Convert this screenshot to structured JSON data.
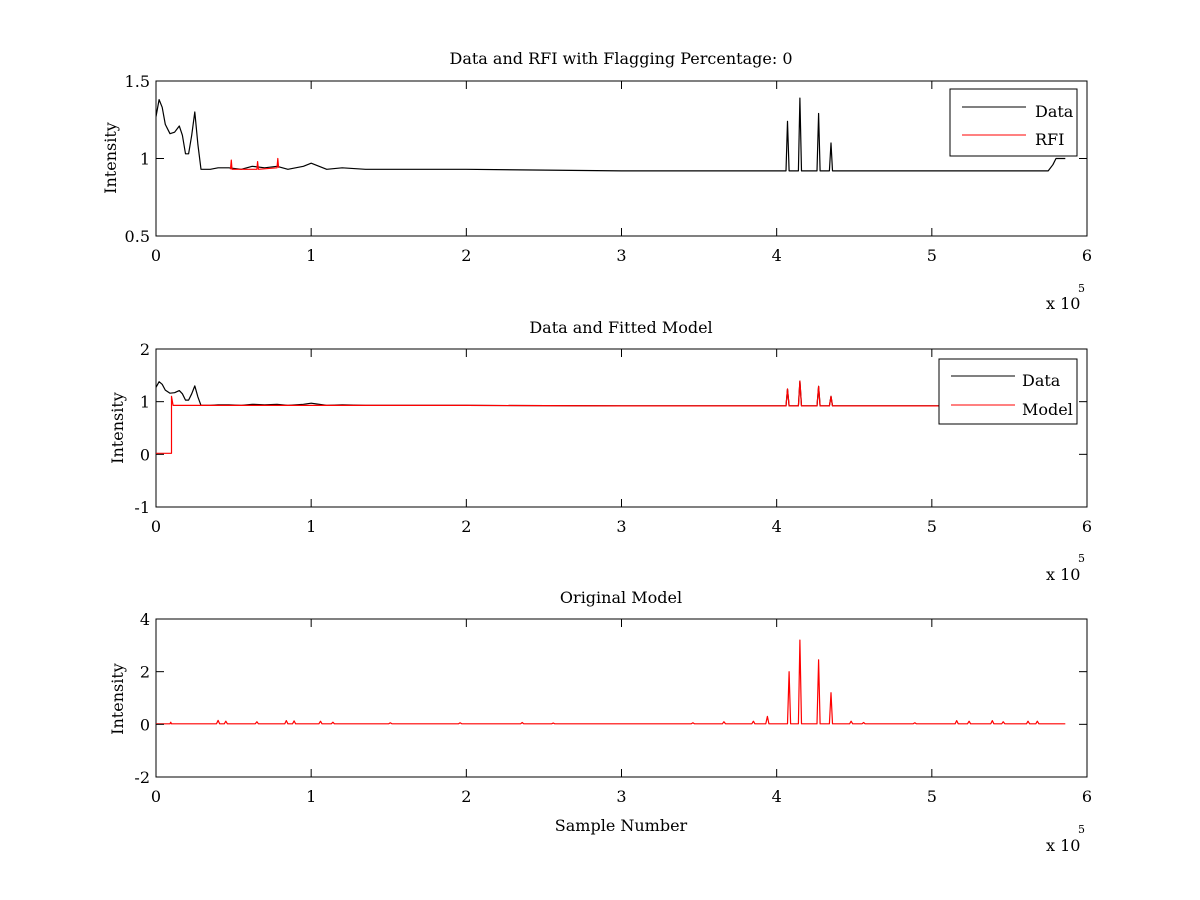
{
  "figure": {
    "background": "#ffffff"
  },
  "chart_data": [
    {
      "type": "line",
      "title": "Data and RFI with Flagging Percentage: 0",
      "xlabel": "",
      "ylabel": "Intensity",
      "xlim": [
        0,
        600000
      ],
      "ylim": [
        0.5,
        1.5
      ],
      "xticks": [
        0,
        100000,
        200000,
        300000,
        400000,
        500000,
        600000
      ],
      "xtick_labels": [
        "0",
        "1",
        "2",
        "3",
        "4",
        "5",
        "6"
      ],
      "yticks": [
        0.5,
        1,
        1.5
      ],
      "ytick_labels": [
        "0.5",
        "1",
        "1.5"
      ],
      "x_exponent_label": "x 10",
      "x_exponent_power": "5",
      "grid": false,
      "legend": {
        "placement": "top-right",
        "entries": [
          {
            "label": "Data",
            "color": "#000000"
          },
          {
            "label": "RFI",
            "color": "#ff0000"
          }
        ]
      },
      "series": [
        {
          "name": "Data",
          "color": "#000000",
          "points": [
            [
              0,
              1.27
            ],
            [
              2000,
              1.38
            ],
            [
              4000,
              1.33
            ],
            [
              6000,
              1.22
            ],
            [
              9000,
              1.16
            ],
            [
              12000,
              1.17
            ],
            [
              15000,
              1.21
            ],
            [
              17000,
              1.15
            ],
            [
              19000,
              1.03
            ],
            [
              21000,
              1.03
            ],
            [
              23000,
              1.15
            ],
            [
              25000,
              1.3
            ],
            [
              27000,
              1.09
            ],
            [
              29000,
              0.93
            ],
            [
              35000,
              0.93
            ],
            [
              40000,
              0.94
            ],
            [
              47000,
              0.94
            ],
            [
              55000,
              0.93
            ],
            [
              62000,
              0.95
            ],
            [
              70000,
              0.94
            ],
            [
              78000,
              0.95
            ],
            [
              85000,
              0.93
            ],
            [
              95000,
              0.95
            ],
            [
              100000,
              0.97
            ],
            [
              110000,
              0.93
            ],
            [
              120000,
              0.94
            ],
            [
              135000,
              0.93
            ],
            [
              150000,
              0.93
            ],
            [
              200000,
              0.93
            ],
            [
              300000,
              0.92
            ],
            [
              400000,
              0.92
            ],
            [
              406000,
              0.92
            ],
            [
              407000,
              1.24
            ],
            [
              408000,
              0.92
            ],
            [
              414000,
              0.92
            ],
            [
              415000,
              1.39
            ],
            [
              416000,
              0.92
            ],
            [
              426000,
              0.92
            ],
            [
              427000,
              1.29
            ],
            [
              428000,
              0.92
            ],
            [
              434000,
              0.92
            ],
            [
              435000,
              1.1
            ],
            [
              436000,
              0.92
            ],
            [
              500000,
              0.92
            ],
            [
              560000,
              0.92
            ],
            [
              575000,
              0.92
            ],
            [
              578000,
              0.96
            ],
            [
              580000,
              1.0
            ],
            [
              586000,
              1.0
            ]
          ]
        },
        {
          "name": "RFI",
          "color": "#ff0000",
          "points": [
            [
              48000,
              0.93
            ],
            [
              48500,
              0.99
            ],
            [
              49000,
              0.93
            ],
            [
              65000,
              0.93
            ],
            [
              65500,
              0.98
            ],
            [
              66000,
              0.93
            ],
            [
              78000,
              0.94
            ],
            [
              78500,
              1.0
            ],
            [
              79000,
              0.94
            ]
          ]
        }
      ]
    },
    {
      "type": "line",
      "title": "Data and Fitted Model",
      "xlabel": "",
      "ylabel": "Intensity",
      "xlim": [
        0,
        600000
      ],
      "ylim": [
        -1,
        2
      ],
      "xticks": [
        0,
        100000,
        200000,
        300000,
        400000,
        500000,
        600000
      ],
      "xtick_labels": [
        "0",
        "1",
        "2",
        "3",
        "4",
        "5",
        "6"
      ],
      "yticks": [
        -1,
        0,
        1,
        2
      ],
      "ytick_labels": [
        "-1",
        "0",
        "1",
        "2"
      ],
      "x_exponent_label": "x 10",
      "x_exponent_power": "5",
      "grid": false,
      "legend": {
        "placement": "top-right",
        "entries": [
          {
            "label": "Data",
            "color": "#000000"
          },
          {
            "label": "Model",
            "color": "#ff0000"
          }
        ]
      },
      "series": [
        {
          "name": "Data",
          "color": "#000000",
          "points": [
            [
              0,
              1.27
            ],
            [
              2000,
              1.38
            ],
            [
              4000,
              1.33
            ],
            [
              6000,
              1.22
            ],
            [
              9000,
              1.16
            ],
            [
              12000,
              1.17
            ],
            [
              15000,
              1.21
            ],
            [
              17000,
              1.15
            ],
            [
              19000,
              1.03
            ],
            [
              21000,
              1.03
            ],
            [
              23000,
              1.15
            ],
            [
              25000,
              1.3
            ],
            [
              27000,
              1.09
            ],
            [
              29000,
              0.93
            ],
            [
              35000,
              0.93
            ],
            [
              40000,
              0.94
            ],
            [
              47000,
              0.94
            ],
            [
              55000,
              0.93
            ],
            [
              62000,
              0.95
            ],
            [
              70000,
              0.94
            ],
            [
              78000,
              0.95
            ],
            [
              85000,
              0.93
            ],
            [
              95000,
              0.95
            ],
            [
              100000,
              0.97
            ],
            [
              110000,
              0.93
            ],
            [
              120000,
              0.94
            ],
            [
              135000,
              0.93
            ],
            [
              150000,
              0.93
            ],
            [
              200000,
              0.93
            ],
            [
              300000,
              0.92
            ],
            [
              400000,
              0.92
            ],
            [
              406000,
              0.92
            ],
            [
              407000,
              1.24
            ],
            [
              408000,
              0.92
            ],
            [
              414000,
              0.92
            ],
            [
              415000,
              1.39
            ],
            [
              416000,
              0.92
            ],
            [
              426000,
              0.92
            ],
            [
              427000,
              1.29
            ],
            [
              428000,
              0.92
            ],
            [
              434000,
              0.92
            ],
            [
              435000,
              1.1
            ],
            [
              436000,
              0.92
            ],
            [
              500000,
              0.92
            ],
            [
              560000,
              0.92
            ],
            [
              575000,
              0.92
            ],
            [
              578000,
              0.96
            ],
            [
              580000,
              1.0
            ],
            [
              586000,
              1.0
            ]
          ]
        },
        {
          "name": "Model",
          "color": "#ff0000",
          "points": [
            [
              0,
              0.02
            ],
            [
              10000,
              0.02
            ],
            [
              10000,
              1.1
            ],
            [
              11000,
              0.93
            ],
            [
              200000,
              0.93
            ],
            [
              300000,
              0.92
            ],
            [
              406000,
              0.92
            ],
            [
              407000,
              1.24
            ],
            [
              408000,
              0.92
            ],
            [
              414000,
              0.92
            ],
            [
              415000,
              1.39
            ],
            [
              416000,
              0.92
            ],
            [
              426000,
              0.92
            ],
            [
              427000,
              1.29
            ],
            [
              428000,
              0.92
            ],
            [
              434000,
              0.92
            ],
            [
              435000,
              1.1
            ],
            [
              436000,
              0.92
            ],
            [
              586000,
              0.92
            ]
          ]
        }
      ]
    },
    {
      "type": "line",
      "title": "Original Model",
      "xlabel": "Sample Number",
      "ylabel": "Intensity",
      "xlim": [
        0,
        600000
      ],
      "ylim": [
        -2,
        4
      ],
      "xticks": [
        0,
        100000,
        200000,
        300000,
        400000,
        500000,
        600000
      ],
      "xtick_labels": [
        "0",
        "1",
        "2",
        "3",
        "4",
        "5",
        "6"
      ],
      "yticks": [
        -2,
        0,
        2,
        4
      ],
      "ytick_labels": [
        "-2",
        "0",
        "2",
        "4"
      ],
      "x_exponent_label": "x 10",
      "x_exponent_power": "5",
      "grid": false,
      "series": [
        {
          "name": "",
          "color": "#ff0000",
          "points": [
            [
              0,
              0.02
            ],
            [
              9000,
              0.02
            ],
            [
              9500,
              0.08
            ],
            [
              10000,
              0.02
            ],
            [
              39000,
              0.02
            ],
            [
              40000,
              0.15
            ],
            [
              41000,
              0.02
            ],
            [
              44000,
              0.02
            ],
            [
              45000,
              0.12
            ],
            [
              46000,
              0.02
            ],
            [
              64000,
              0.02
            ],
            [
              65000,
              0.1
            ],
            [
              66000,
              0.02
            ],
            [
              83000,
              0.02
            ],
            [
              84000,
              0.14
            ],
            [
              85000,
              0.02
            ],
            [
              88000,
              0.02
            ],
            [
              89000,
              0.13
            ],
            [
              90000,
              0.02
            ],
            [
              105000,
              0.02
            ],
            [
              106000,
              0.12
            ],
            [
              107000,
              0.02
            ],
            [
              113000,
              0.02
            ],
            [
              114000,
              0.08
            ],
            [
              115000,
              0.02
            ],
            [
              150000,
              0.02
            ],
            [
              151000,
              0.06
            ],
            [
              152000,
              0.02
            ],
            [
              195000,
              0.02
            ],
            [
              196000,
              0.06
            ],
            [
              197000,
              0.02
            ],
            [
              235000,
              0.02
            ],
            [
              236000,
              0.07
            ],
            [
              237000,
              0.02
            ],
            [
              255000,
              0.02
            ],
            [
              256000,
              0.05
            ],
            [
              257000,
              0.02
            ],
            [
              345000,
              0.02
            ],
            [
              346000,
              0.06
            ],
            [
              347000,
              0.02
            ],
            [
              365000,
              0.02
            ],
            [
              366000,
              0.1
            ],
            [
              367000,
              0.02
            ],
            [
              384000,
              0.02
            ],
            [
              385000,
              0.12
            ],
            [
              386000,
              0.02
            ],
            [
              393000,
              0.02
            ],
            [
              394000,
              0.3
            ],
            [
              395000,
              0.02
            ],
            [
              407000,
              0.02
            ],
            [
              408000,
              2.0
            ],
            [
              409000,
              0.02
            ],
            [
              414000,
              0.02
            ],
            [
              415000,
              3.2
            ],
            [
              416000,
              0.02
            ],
            [
              426000,
              0.02
            ],
            [
              427000,
              2.45
            ],
            [
              428000,
              0.02
            ],
            [
              434000,
              0.02
            ],
            [
              435000,
              1.2
            ],
            [
              436000,
              0.02
            ],
            [
              447000,
              0.02
            ],
            [
              448000,
              0.12
            ],
            [
              449000,
              0.02
            ],
            [
              455000,
              0.02
            ],
            [
              456000,
              0.07
            ],
            [
              457000,
              0.02
            ],
            [
              488000,
              0.02
            ],
            [
              489000,
              0.06
            ],
            [
              490000,
              0.02
            ],
            [
              515000,
              0.02
            ],
            [
              516000,
              0.14
            ],
            [
              517000,
              0.02
            ],
            [
              523000,
              0.02
            ],
            [
              524000,
              0.12
            ],
            [
              525000,
              0.02
            ],
            [
              538000,
              0.02
            ],
            [
              539000,
              0.14
            ],
            [
              540000,
              0.02
            ],
            [
              545000,
              0.02
            ],
            [
              546000,
              0.1
            ],
            [
              547000,
              0.02
            ],
            [
              561000,
              0.02
            ],
            [
              562000,
              0.12
            ],
            [
              563000,
              0.02
            ],
            [
              567000,
              0.02
            ],
            [
              568000,
              0.12
            ],
            [
              569000,
              0.02
            ],
            [
              586000,
              0.02
            ]
          ]
        }
      ]
    }
  ]
}
